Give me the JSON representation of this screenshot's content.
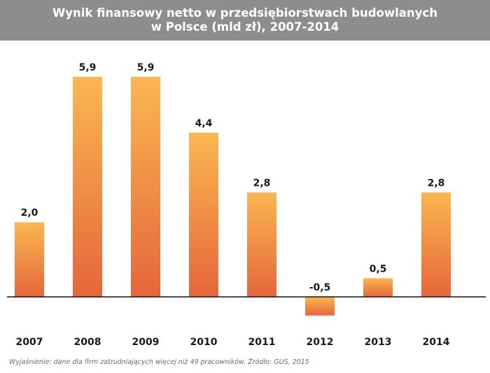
{
  "chart_data": {
    "type": "bar",
    "title": "Wynik finansowy netto w przedsiębiorstwach budowlanych",
    "subtitle": "w Polsce (mld zł), 2007-2014",
    "categories": [
      "2007",
      "2008",
      "2009",
      "2010",
      "2011",
      "2012",
      "2013",
      "2014"
    ],
    "values": [
      2.0,
      5.9,
      5.9,
      4.4,
      2.8,
      -0.5,
      0.5,
      2.8
    ],
    "value_labels": [
      "2,0",
      "5,9",
      "5,9",
      "4,4",
      "2,8",
      "-0,5",
      "0,5",
      "2,8"
    ],
    "xlabel": "",
    "ylabel": "",
    "ylim": [
      -0.5,
      5.9
    ],
    "grid": false,
    "legend": "none",
    "colors": {
      "bar_top": "#fbb751",
      "bar_bottom": "#e5663b",
      "header_bg": "#8c8d8f",
      "baseline": "#111111"
    },
    "footnote": "Wyjaśnienie: dane dla firm zatrudniających więcej niż 49 pracowników. Źródło: GUS, 2015"
  }
}
